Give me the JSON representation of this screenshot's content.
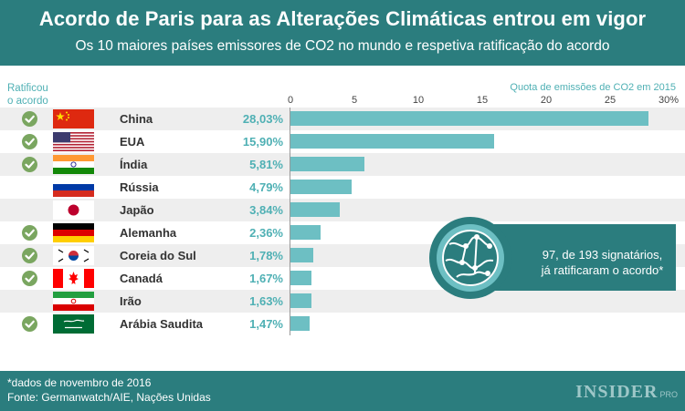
{
  "header": {
    "title": "Acordo de Paris para as Alterações Climáticas entrou em vigor",
    "subtitle": "Os 10 maiores países emissores de CO2 no mundo e respetiva ratificação do acordo"
  },
  "ratified_header_line1": "Ratificou",
  "ratified_header_line2": "o acordo",
  "chart_data": {
    "type": "bar",
    "orientation": "horizontal",
    "title": "Acordo de Paris para as Alterações Climáticas entrou em vigor",
    "subtitle": "Os 10 maiores países emissores de CO2 no mundo e respetiva ratificação do acordo",
    "xlabel": "Quota de emissões de CO2 em 2015",
    "xlim": [
      0,
      30
    ],
    "xticks": [
      "0",
      "5",
      "10",
      "15",
      "20",
      "25",
      "30%"
    ],
    "categories": [
      "China",
      "EUA",
      "Índia",
      "Rússia",
      "Japão",
      "Alemanha",
      "Coreia do Sul",
      "Canadá",
      "Irão",
      "Arábia Saudita"
    ],
    "values": [
      28.03,
      15.9,
      5.81,
      4.79,
      3.84,
      2.36,
      1.78,
      1.67,
      1.63,
      1.47
    ],
    "value_labels": [
      "28,03%",
      "15,90%",
      "5,81%",
      "4,79%",
      "3,84%",
      "2,36%",
      "1,78%",
      "1,67%",
      "1,63%",
      "1,47%"
    ],
    "ratified": [
      true,
      true,
      true,
      false,
      false,
      true,
      true,
      true,
      false,
      true
    ],
    "grid": false,
    "bar_color": "#6dbfc3"
  },
  "flags": [
    "china-flag",
    "usa-flag",
    "india-flag",
    "russia-flag",
    "japan-flag",
    "germany-flag",
    "south-korea-flag",
    "canada-flag",
    "iran-flag",
    "saudi-arabia-flag"
  ],
  "callout": {
    "line1": "97, de 193 signatários,",
    "line2": "já ratificaram o acordo*"
  },
  "footer": {
    "note": "*dados de novembro de 2016",
    "source": "Fonte: Germanwatch/AIE, Nações Unidas",
    "logo": "INSIDER",
    "logo_suffix": "PRO"
  },
  "colors": {
    "teal_dark": "#2b7d7e",
    "teal_light": "#4fb0b4",
    "check_green": "#7aa660"
  }
}
